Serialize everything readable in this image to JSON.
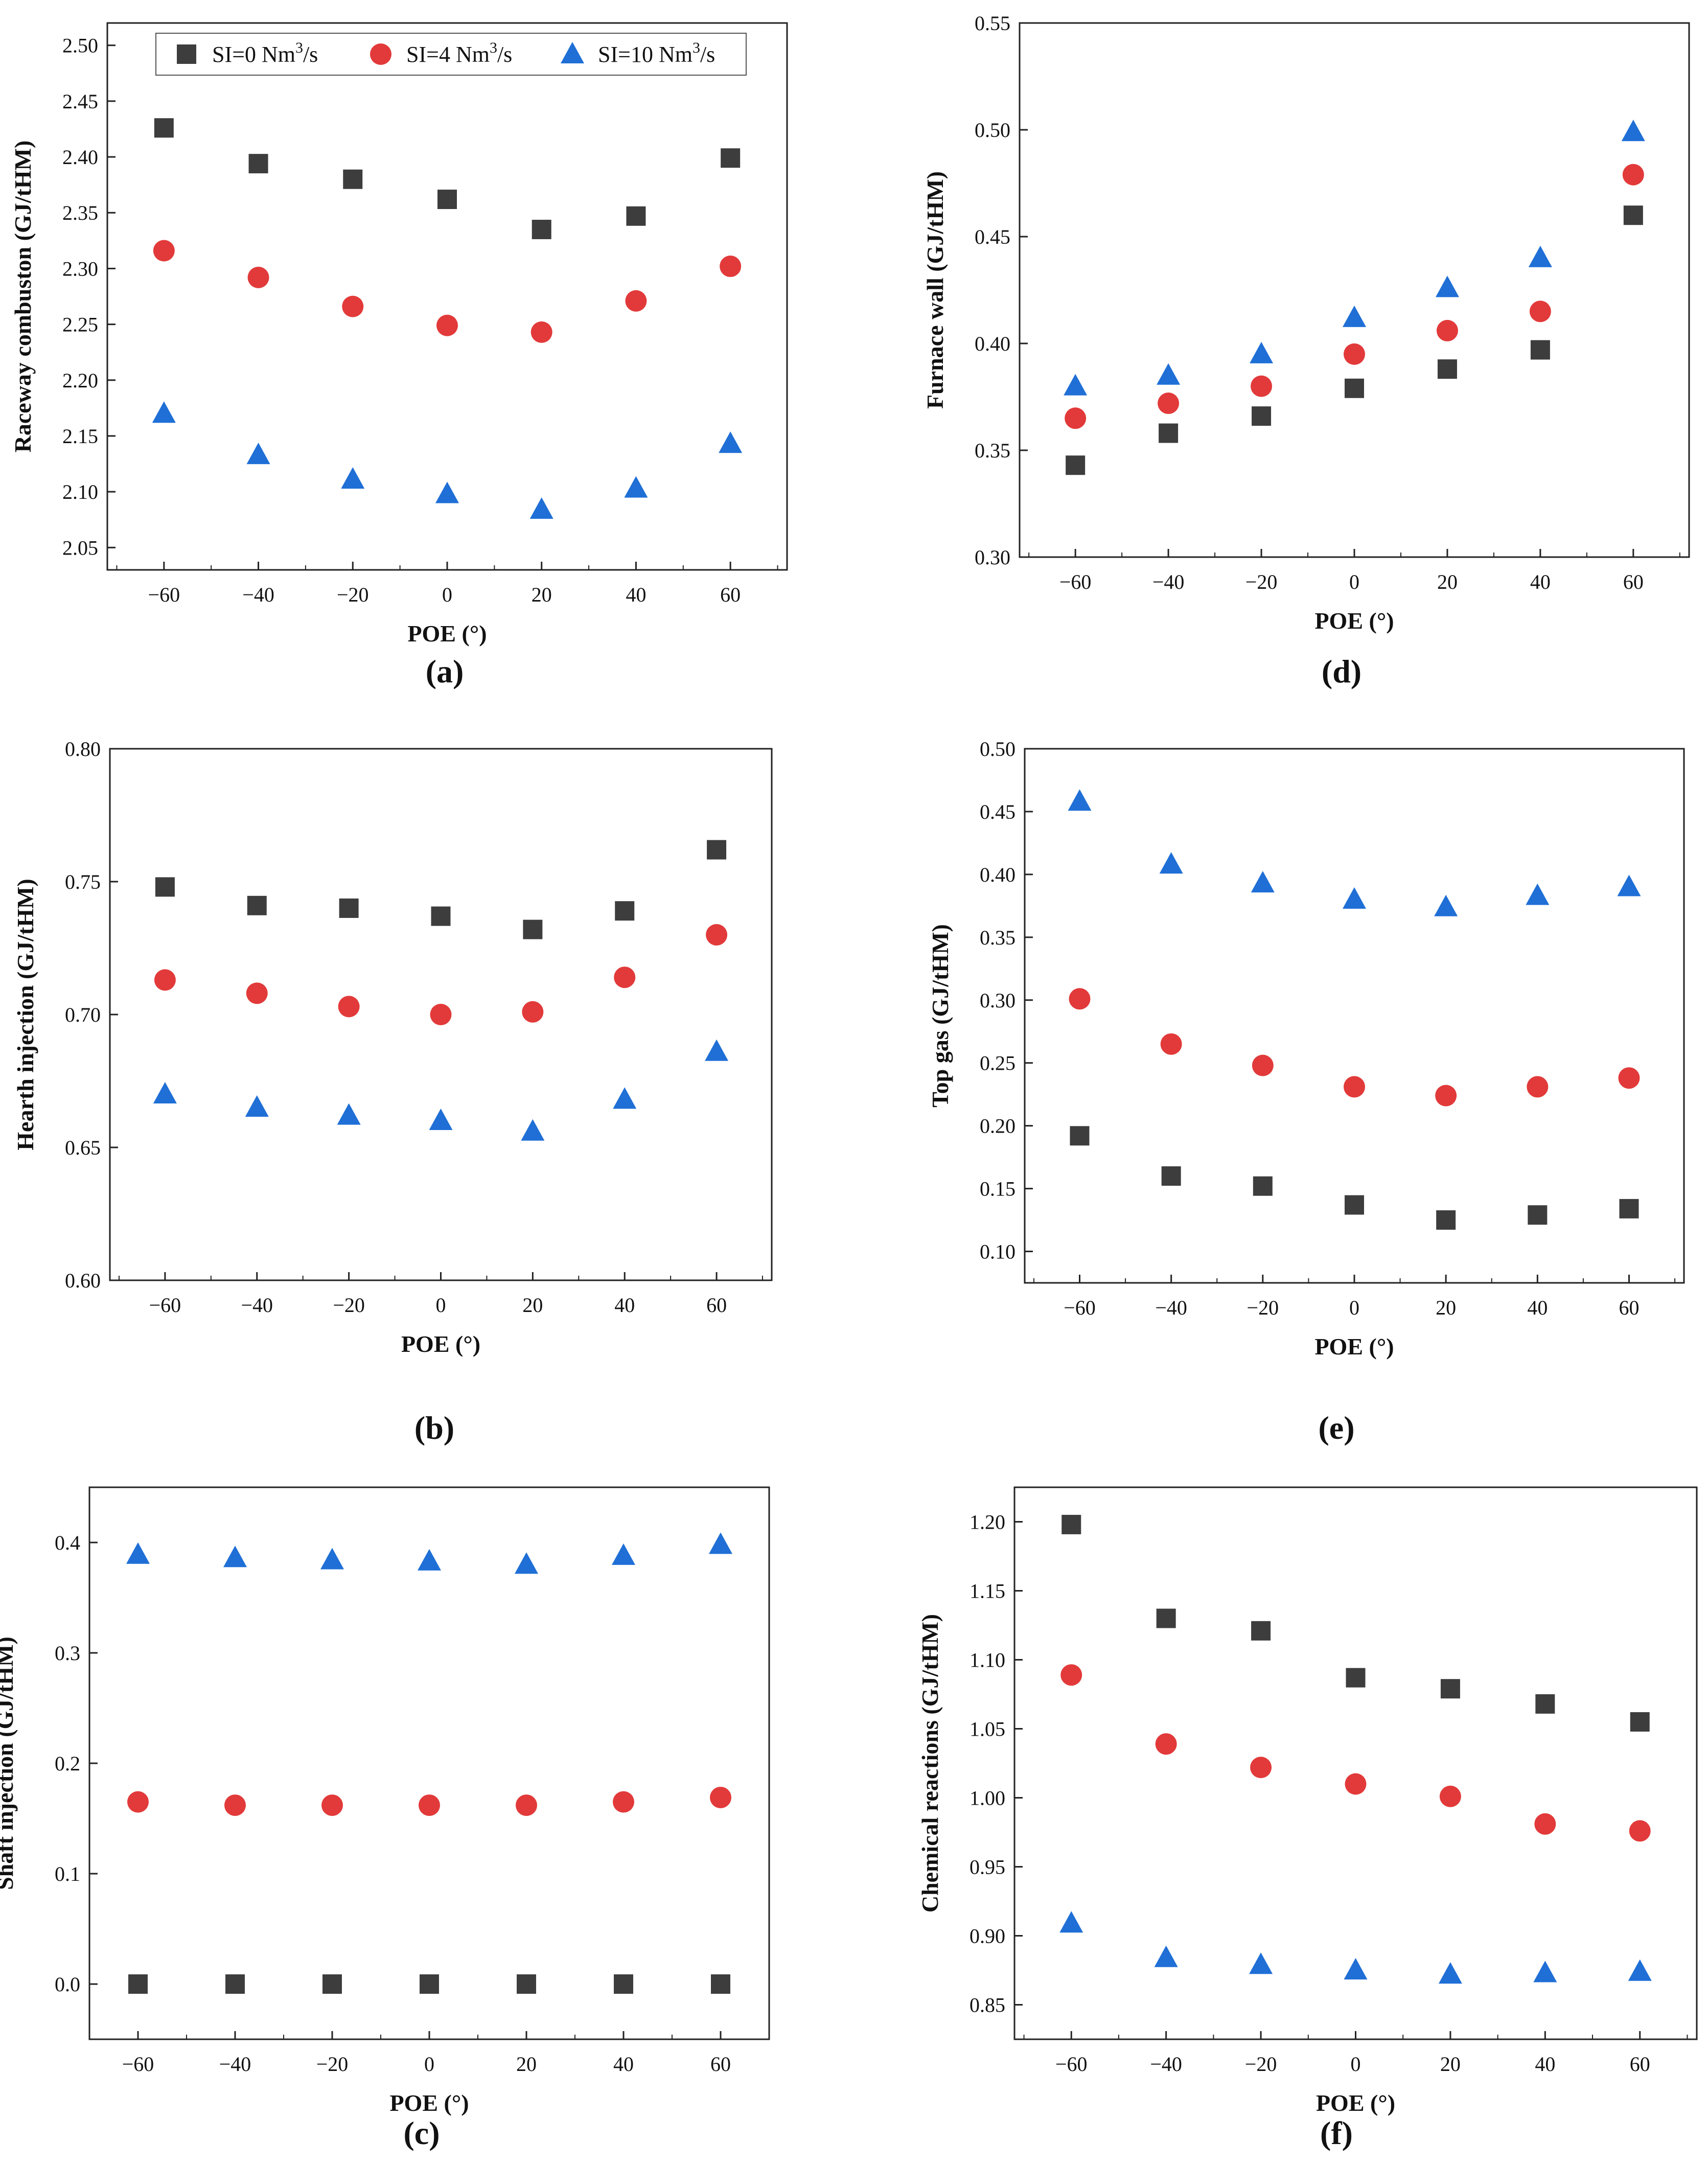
{
  "figure": {
    "series_colors": {
      "SI0": "#3d3d3d",
      "SI4": "#e23a3a",
      "SI10": "#1f6fd6"
    },
    "legend": {
      "entries": [
        {
          "key": "SI0",
          "text": "SI=0 Nm",
          "sup": "3",
          "tail": "/s",
          "marker": "square"
        },
        {
          "key": "SI4",
          "text": "SI=4 Nm",
          "sup": "3",
          "tail": "/s",
          "marker": "circle"
        },
        {
          "key": "SI10",
          "text": "SI=10 Nm",
          "sup": "3",
          "tail": "/s",
          "marker": "triangle"
        }
      ]
    }
  },
  "chart_data": [
    {
      "id": "a",
      "panel_label": "(a)",
      "type": "scatter",
      "xlabel": "POE (°)",
      "ylabel": "Raceway combuston (GJ/tHM)",
      "x": [
        -60,
        -40,
        -20,
        0,
        20,
        40,
        60
      ],
      "xlim": [
        -72,
        72
      ],
      "xticks": [
        -60,
        -40,
        -20,
        0,
        20,
        40,
        60
      ],
      "ylim": [
        2.03,
        2.52
      ],
      "yticks": [
        2.05,
        2.1,
        2.15,
        2.2,
        2.25,
        2.3,
        2.35,
        2.4,
        2.45,
        2.5
      ],
      "legend": "top",
      "series": [
        {
          "key": "SI0",
          "values": [
            2.426,
            2.394,
            2.38,
            2.362,
            2.335,
            2.347,
            2.399
          ]
        },
        {
          "key": "SI4",
          "values": [
            2.316,
            2.292,
            2.266,
            2.249,
            2.243,
            2.271,
            2.302
          ]
        },
        {
          "key": "SI10",
          "values": [
            2.17,
            2.133,
            2.111,
            2.098,
            2.084,
            2.103,
            2.143
          ]
        }
      ]
    },
    {
      "id": "b",
      "panel_label": "(b)",
      "type": "scatter",
      "xlabel": "POE (°)",
      "ylabel": "Hearth injection (GJ/tHM)",
      "x": [
        -60,
        -40,
        -20,
        0,
        20,
        40,
        60
      ],
      "xlim": [
        -72,
        72
      ],
      "xticks": [
        -60,
        -40,
        -20,
        0,
        20,
        40,
        60
      ],
      "ylim": [
        0.6,
        0.8
      ],
      "yticks": [
        0.6,
        0.65,
        0.7,
        0.75,
        0.8
      ],
      "series": [
        {
          "key": "SI0",
          "values": [
            0.748,
            0.741,
            0.74,
            0.737,
            0.732,
            0.739,
            0.762
          ]
        },
        {
          "key": "SI4",
          "values": [
            0.713,
            0.708,
            0.703,
            0.7,
            0.701,
            0.714,
            0.73
          ]
        },
        {
          "key": "SI10",
          "values": [
            0.67,
            0.665,
            0.662,
            0.66,
            0.656,
            0.668,
            0.686
          ]
        }
      ]
    },
    {
      "id": "c",
      "panel_label": "(c)",
      "type": "scatter",
      "xlabel": "POE (°)",
      "ylabel": "Shaft injection (GJ/tHM)",
      "x": [
        -60,
        -40,
        -20,
        0,
        20,
        40,
        60
      ],
      "xlim": [
        -70,
        70
      ],
      "xticks": [
        -60,
        -40,
        -20,
        0,
        20,
        40,
        60
      ],
      "ylim": [
        -0.05,
        0.45
      ],
      "yticks": [
        0.0,
        0.1,
        0.2,
        0.3,
        0.4
      ],
      "series": [
        {
          "key": "SI0",
          "values": [
            0.0,
            0.0,
            0.0,
            0.0,
            0.0,
            0.0,
            0.0
          ]
        },
        {
          "key": "SI4",
          "values": [
            0.165,
            0.162,
            0.162,
            0.162,
            0.162,
            0.165,
            0.169
          ]
        },
        {
          "key": "SI10",
          "values": [
            0.389,
            0.386,
            0.384,
            0.383,
            0.38,
            0.388,
            0.398
          ]
        }
      ]
    },
    {
      "id": "d",
      "panel_label": "(d)",
      "type": "scatter",
      "xlabel": "POE (°)",
      "ylabel": "Furnace wall (GJ/tHM)",
      "x": [
        -60,
        -40,
        -20,
        0,
        20,
        40,
        60
      ],
      "xlim": [
        -72,
        72
      ],
      "xticks": [
        -60,
        -40,
        -20,
        0,
        20,
        40,
        60
      ],
      "ylim": [
        0.3,
        0.55
      ],
      "yticks": [
        0.3,
        0.35,
        0.4,
        0.45,
        0.5,
        0.55
      ],
      "series": [
        {
          "key": "SI0",
          "values": [
            0.343,
            0.358,
            0.366,
            0.379,
            0.388,
            0.397,
            0.46
          ]
        },
        {
          "key": "SI4",
          "values": [
            0.365,
            0.372,
            0.38,
            0.395,
            0.406,
            0.415,
            0.479
          ]
        },
        {
          "key": "SI10",
          "values": [
            0.38,
            0.385,
            0.395,
            0.412,
            0.426,
            0.44,
            0.499
          ]
        }
      ]
    },
    {
      "id": "e",
      "panel_label": "(e)",
      "type": "scatter",
      "xlabel": "POE (°)",
      "ylabel": "Top gas (GJ/tHM)",
      "x": [
        -60,
        -40,
        -20,
        0,
        20,
        40,
        60
      ],
      "xlim": [
        -72,
        72
      ],
      "xticks": [
        -60,
        -40,
        -20,
        0,
        20,
        40,
        60
      ],
      "ylim": [
        0.075,
        0.5
      ],
      "yticks": [
        0.1,
        0.15,
        0.2,
        0.25,
        0.3,
        0.35,
        0.4,
        0.45,
        0.5
      ],
      "series": [
        {
          "key": "SI0",
          "values": [
            0.192,
            0.16,
            0.152,
            0.137,
            0.125,
            0.129,
            0.134
          ]
        },
        {
          "key": "SI4",
          "values": [
            0.301,
            0.265,
            0.248,
            0.231,
            0.224,
            0.231,
            0.238
          ]
        },
        {
          "key": "SI10",
          "values": [
            0.458,
            0.408,
            0.393,
            0.38,
            0.374,
            0.383,
            0.39
          ]
        }
      ]
    },
    {
      "id": "f",
      "panel_label": "(f)",
      "type": "scatter",
      "xlabel": "POE (°)",
      "ylabel": "Chemical reactions (GJ/tHM)",
      "x": [
        -60,
        -40,
        -20,
        0,
        20,
        40,
        60
      ],
      "xlim": [
        -72,
        72
      ],
      "xticks": [
        -60,
        -40,
        -20,
        0,
        20,
        40,
        60
      ],
      "ylim": [
        0.825,
        1.225
      ],
      "yticks": [
        0.85,
        0.9,
        0.95,
        1.0,
        1.05,
        1.1,
        1.15,
        1.2
      ],
      "series": [
        {
          "key": "SI0",
          "values": [
            1.198,
            1.13,
            1.121,
            1.087,
            1.079,
            1.068,
            1.055
          ]
        },
        {
          "key": "SI4",
          "values": [
            1.089,
            1.039,
            1.022,
            1.01,
            1.001,
            0.981,
            0.976
          ]
        },
        {
          "key": "SI10",
          "values": [
            0.909,
            0.884,
            0.879,
            0.875,
            0.872,
            0.873,
            0.874
          ]
        }
      ]
    }
  ]
}
